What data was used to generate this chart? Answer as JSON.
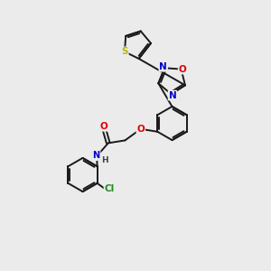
{
  "background_color": "#ebebeb",
  "bond_color": "#1a1a1a",
  "atom_colors": {
    "S": "#b8b800",
    "O": "#dd0000",
    "N": "#0000cc",
    "Cl": "#228822",
    "C": "#1a1a1a",
    "H": "#444444"
  },
  "figsize": [
    3.0,
    3.0
  ],
  "dpi": 100
}
